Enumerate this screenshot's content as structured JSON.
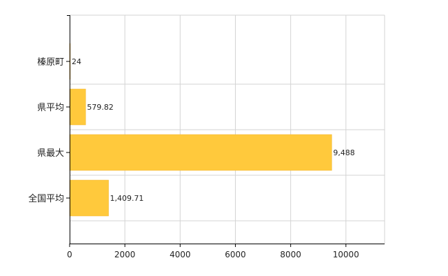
{
  "chart_data": {
    "type": "bar",
    "orientation": "horizontal",
    "categories": [
      "榛原町",
      "県平均",
      "県最大",
      "全国平均"
    ],
    "values": [
      24,
      579.82,
      9488,
      1409.71
    ],
    "data_labels": [
      "24",
      "579.82",
      "9,488",
      "1,409.71"
    ],
    "xlim": [
      0,
      11400
    ],
    "xticks": [
      0,
      2000,
      4000,
      6000,
      8000,
      10000
    ],
    "xtick_labels": [
      "0",
      "2000",
      "4000",
      "6000",
      "8000",
      "10000"
    ],
    "grid": true,
    "title": "",
    "xlabel": "",
    "ylabel": "",
    "bar_color": "#FFC93C",
    "bar_edge_color": "#F2B52A",
    "grid_color": "#D3D3D3",
    "axis_color": "#000000"
  }
}
